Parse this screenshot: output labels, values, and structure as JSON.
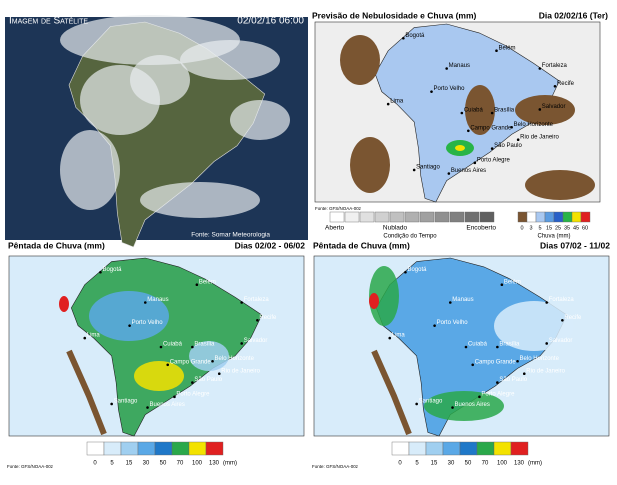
{
  "satellite": {
    "title": "Imagem de Satélite",
    "timestamp": "02/02/16 06:00",
    "source": "Fonte: Somar Meteorologia"
  },
  "forecast": {
    "title": "Previsão de Nebulosidade e Chuva (mm)",
    "date": "Dia 02/02/16 (Ter)",
    "cities": [
      "Bogotá",
      "Manaus",
      "Belém",
      "Fortaleza",
      "Recife",
      "Salvador",
      "Porto Velho",
      "Cuiabá",
      "Brasília",
      "Campo Grande",
      "Belo Horizonte",
      "Rio de Janeiro",
      "São Paulo",
      "Santiago",
      "Buenos Aires",
      "Porto Alegre",
      "Lima"
    ],
    "condition_legend": {
      "labels": [
        "Aberto",
        "Nublado",
        "Encoberto"
      ],
      "caption": "Condição do Tempo"
    },
    "rain_legend": {
      "values": [
        0,
        3,
        5,
        15,
        25,
        35,
        45,
        60
      ],
      "caption": "Chuva (mm)"
    },
    "source": "Fonte: GFS/NOAA-00z"
  },
  "pentads": [
    {
      "title": "Pêntada de Chuva (mm)",
      "dates": "Dias 02/02 - 06/02",
      "cities": [
        "Bogotá",
        "Manaus",
        "Belém",
        "Fortaleza",
        "Recife",
        "Salvador",
        "Porto Velho",
        "Cuiabá",
        "Brasília",
        "Campo Grande",
        "Belo Horizonte",
        "Rio de Janeiro",
        "São Paulo",
        "Santiago",
        "Buenos Aires",
        "Porto Alegre",
        "Lima"
      ],
      "legend": {
        "values": [
          0,
          5,
          15,
          30,
          50,
          70,
          100,
          130
        ],
        "unit": "(mm)"
      },
      "source": "Fonte: GFS/NOAA-00z"
    },
    {
      "title": "Pêntada de Chuva (mm)",
      "dates": "Dias 07/02 - 11/02",
      "cities": [
        "Bogotá",
        "Manaus",
        "Belém",
        "Fortaleza",
        "Recife",
        "Salvador",
        "Porto Velho",
        "Cuiabá",
        "Brasília",
        "Campo Grande",
        "Belo Horizonte",
        "Rio de Janeiro",
        "São Paulo",
        "Santiago",
        "Buenos Aires",
        "Porto Alegre",
        "Lima"
      ],
      "legend": {
        "values": [
          0,
          5,
          15,
          30,
          50,
          70,
          100,
          130
        ],
        "unit": "(mm)"
      },
      "source": "Fonte: GFS/NOAA-00z"
    }
  ]
}
